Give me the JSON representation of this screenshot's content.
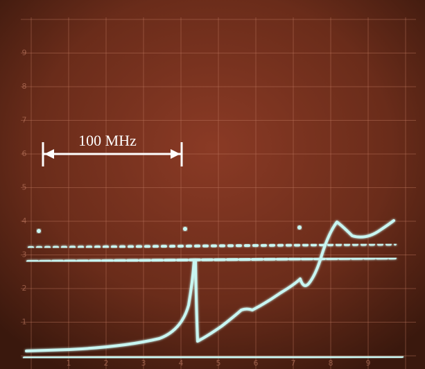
{
  "annotation": "100 MHz",
  "y_labels": [
    "1",
    "2",
    "3",
    "4",
    "5",
    "6",
    "7",
    "8",
    "9"
  ],
  "x_labels": [
    "1",
    "2",
    "3",
    "4",
    "5",
    "6",
    "7",
    "8",
    "9"
  ]
}
